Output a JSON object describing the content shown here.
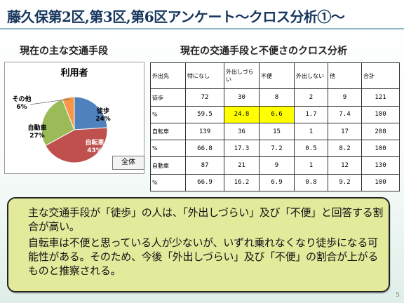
{
  "slide": {
    "title": "藤久保第2区,第3区,第6区アンケート～クロス分析①～",
    "left_subtitle": "現在の主な交通手段",
    "right_subtitle": "現在の交通手段と不便さのクロス分析",
    "page_number": "5"
  },
  "pie": {
    "title": "利用者",
    "button_label": "全体",
    "slices": [
      {
        "name": "徒歩",
        "pct_label": "24%",
        "value": 24,
        "color": "#4f81bd"
      },
      {
        "name": "自転車",
        "pct_label": "43%",
        "value": 43,
        "color": "#c0504d"
      },
      {
        "name": "自動車",
        "pct_label": "27%",
        "value": 27,
        "color": "#9bbb59"
      },
      {
        "name": "その他",
        "pct_label": "6%",
        "value": 6,
        "color": "#f79646"
      }
    ]
  },
  "table": {
    "headers": [
      "外出先",
      "特になし",
      "外出しづらい",
      "不便",
      "外出しない",
      "他",
      "合計"
    ],
    "rows": [
      {
        "label": "徒歩",
        "cells": [
          "72",
          "30",
          "8",
          "2",
          "9",
          "121"
        ]
      },
      {
        "label": "%",
        "cells": [
          "59.5",
          "24.8",
          "6.6",
          "1.7",
          "7.4",
          "100"
        ],
        "highlight": [
          1,
          2
        ]
      },
      {
        "label": "自転車",
        "cells": [
          "139",
          "36",
          "15",
          "1",
          "17",
          "208"
        ]
      },
      {
        "label": "%",
        "cells": [
          "66.8",
          "17.3",
          "7.2",
          "0.5",
          "8.2",
          "100"
        ]
      },
      {
        "label": "自動車",
        "cells": [
          "87",
          "21",
          "9",
          "1",
          "12",
          "130"
        ]
      },
      {
        "label": "%",
        "cells": [
          "66.9",
          "16.2",
          "6.9",
          "0.8",
          "9.2",
          "100"
        ]
      }
    ]
  },
  "callout": {
    "para1": "主な交通手段が「徒歩」の人は、「外出しづらい」及び「不便」と回答する割合が高い。",
    "para2": "自転車は不便と思っている人が少ないが、いずれ乗れなくなり徒歩になる可能性がある。そのため、今後「外出しづらい」及び「不便」の割合が上がるものと推察される。"
  }
}
